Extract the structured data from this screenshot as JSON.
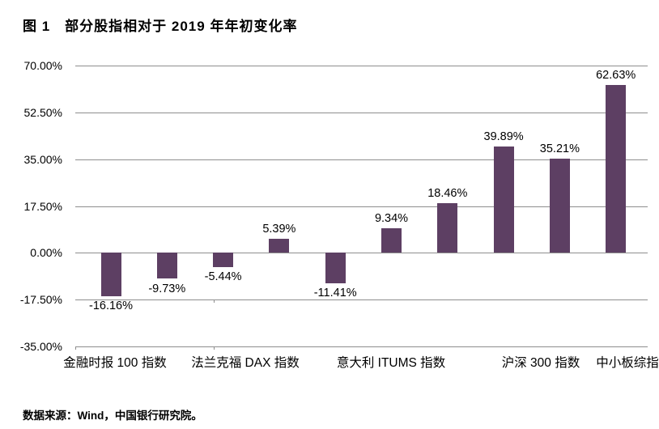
{
  "title": "图 1　部分股指相对于 2019 年年初变化率",
  "source": "数据来源：Wind，中国银行研究院。",
  "chart_data": {
    "type": "bar",
    "title": "图 1　部分股指相对于 2019 年年初变化率",
    "values": [
      -16.16,
      -9.73,
      -5.44,
      5.39,
      -11.41,
      9.34,
      18.46,
      39.89,
      35.21,
      62.63
    ],
    "data_labels": [
      "-16.16%",
      "-9.73%",
      "-5.44%",
      "5.39%",
      "-11.41%",
      "9.34%",
      "18.46%",
      "39.89%",
      "35.21%",
      "62.63%"
    ],
    "category_labels": [
      "金融时报 100 指数",
      "法兰克福 DAX 指数",
      "意大利 ITUMS 指数",
      "沪深 300 指数",
      "中小板综指"
    ],
    "y_tick_labels": [
      "70.00%",
      "52.50%",
      "35.00%",
      "17.50%",
      "0.00%",
      "-17.50%",
      "-35.00%"
    ],
    "y_tick_values": [
      70,
      52.5,
      35,
      17.5,
      0,
      -17.5,
      -35
    ],
    "ylim": [
      -35,
      70
    ],
    "xlabel": "",
    "ylabel": "",
    "legend": "none",
    "grid": true,
    "bar_color": "#5D3F63",
    "gridline_color": "#8e8e8e",
    "text_color": "#000000",
    "background_color": "#ffffff"
  }
}
